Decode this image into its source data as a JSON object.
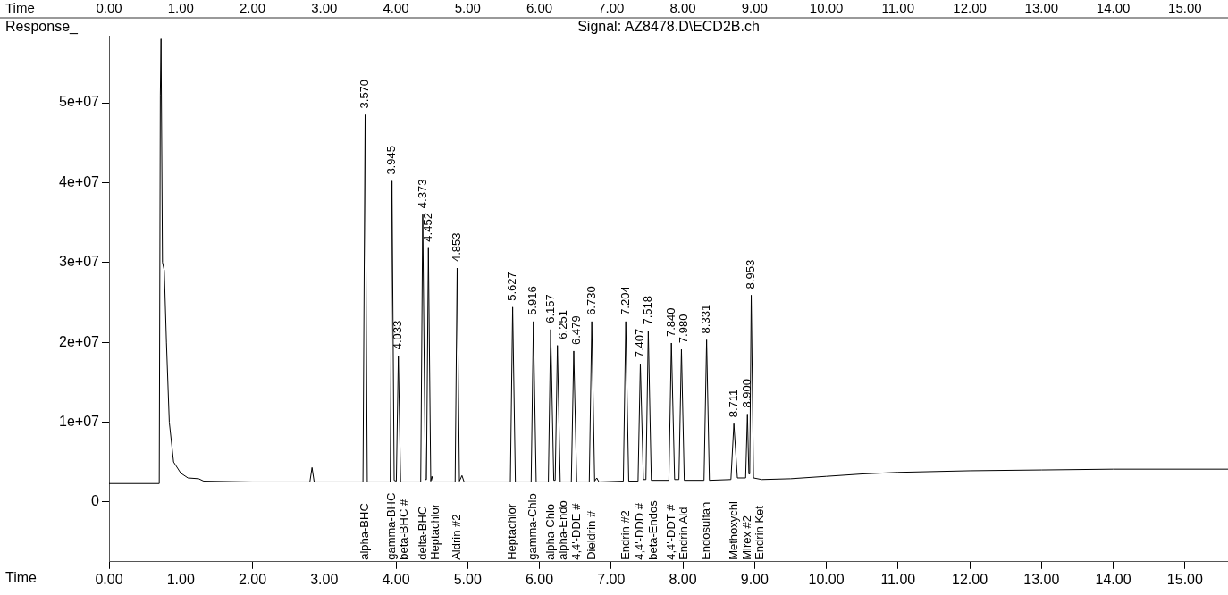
{
  "chart_data": {
    "type": "line",
    "title": "Signal: AZ8478.D\\ECD2B.ch",
    "xlabel": "Time",
    "ylabel": "Response_",
    "x2label": "Time",
    "x": [
      0,
      0.7,
      0.715,
      0.725,
      0.735,
      0.745,
      0.77,
      0.8,
      0.84,
      0.9,
      1.0,
      1.1,
      1.25,
      1.32,
      2.0,
      2.8,
      2.83,
      2.86,
      3.54,
      3.57,
      3.6,
      3.92,
      3.945,
      3.975,
      4.005,
      4.033,
      4.065,
      4.345,
      4.373,
      4.41,
      4.425,
      4.452,
      4.485,
      4.5,
      4.52,
      4.825,
      4.853,
      4.885,
      4.92,
      4.95,
      5.595,
      5.627,
      5.665,
      5.885,
      5.916,
      5.955,
      6.125,
      6.157,
      6.2,
      6.22,
      6.251,
      6.29,
      6.445,
      6.479,
      6.52,
      6.695,
      6.73,
      6.77,
      6.8,
      6.83,
      7.17,
      7.204,
      7.245,
      7.375,
      7.407,
      7.45,
      7.485,
      7.518,
      7.56,
      7.805,
      7.84,
      7.885,
      7.945,
      7.98,
      8.02,
      8.295,
      8.331,
      8.37,
      8.67,
      8.711,
      8.76,
      8.875,
      8.9,
      8.92,
      8.932,
      8.953,
      8.985,
      9.1,
      9.5,
      10.0,
      10.5,
      11.0,
      12.0,
      13.0,
      14.0,
      15.6
    ],
    "series": [
      {
        "color": "#000000",
        "values": [
          2300000,
          2300000,
          51000000,
          58000000,
          58000000,
          30000000,
          29000000,
          20000000,
          10000000,
          5000000,
          3600000,
          3000000,
          2900000,
          2600000,
          2500000,
          2500000,
          4300000,
          2500000,
          2500000,
          48500000,
          2500000,
          2500000,
          40200000,
          2700000,
          2600000,
          18300000,
          2500000,
          2500000,
          36000000,
          2800000,
          2800000,
          31800000,
          2600000,
          3200000,
          2500000,
          2500000,
          29300000,
          2600000,
          3300000,
          2500000,
          2500000,
          24400000,
          2500000,
          2500000,
          22600000,
          2500000,
          2500000,
          21600000,
          2700000,
          2700000,
          19600000,
          2500000,
          2500000,
          18900000,
          2500000,
          2500000,
          22600000,
          2600000,
          3000000,
          2500000,
          2600000,
          22600000,
          2600000,
          2600000,
          17300000,
          2800000,
          2800000,
          21400000,
          2700000,
          2700000,
          19900000,
          2800000,
          2800000,
          19100000,
          2700000,
          2700000,
          20300000,
          2700000,
          2800000,
          9800000,
          3000000,
          3000000,
          11000000,
          3500000,
          3500000,
          25900000,
          3000000,
          2800000,
          2900000,
          3200000,
          3500000,
          3700000,
          3900000,
          4000000,
          4100000,
          4100000
        ]
      }
    ],
    "xlim": [
      0,
      15.6
    ],
    "ylim": [
      -7500000,
      58400000
    ],
    "x2lim": [
      0,
      15.6
    ],
    "xticks": [
      {
        "value": 0,
        "label": "0.00"
      },
      {
        "value": 1,
        "label": "1.00"
      },
      {
        "value": 2,
        "label": "2.00"
      },
      {
        "value": 3,
        "label": "3.00"
      },
      {
        "value": 4,
        "label": "4.00"
      },
      {
        "value": 5,
        "label": "5.00"
      },
      {
        "value": 6,
        "label": "6.00"
      },
      {
        "value": 7,
        "label": "7.00"
      },
      {
        "value": 8,
        "label": "8.00"
      },
      {
        "value": 9,
        "label": "9.00"
      },
      {
        "value": 10,
        "label": "10.00"
      },
      {
        "value": 11,
        "label": "11.00"
      },
      {
        "value": 12,
        "label": "12.00"
      },
      {
        "value": 13,
        "label": "13.00"
      },
      {
        "value": 14,
        "label": "14.00"
      },
      {
        "value": 15,
        "label": "15.00"
      }
    ],
    "x2ticks": [
      {
        "value": 0,
        "label": "0.00"
      },
      {
        "value": 1,
        "label": "1.00"
      },
      {
        "value": 2,
        "label": "2.00"
      },
      {
        "value": 3,
        "label": "3.00"
      },
      {
        "value": 4,
        "label": "4.00"
      },
      {
        "value": 5,
        "label": "5.00"
      },
      {
        "value": 6,
        "label": "6.00"
      },
      {
        "value": 7,
        "label": "7.00"
      },
      {
        "value": 8,
        "label": "8.00"
      },
      {
        "value": 9,
        "label": "9.00"
      },
      {
        "value": 10,
        "label": "10.00"
      },
      {
        "value": 11,
        "label": "11.00"
      },
      {
        "value": 12,
        "label": "12.00"
      },
      {
        "value": 13,
        "label": "13.00"
      },
      {
        "value": 14,
        "label": "14.00"
      },
      {
        "value": 15,
        "label": "15.00"
      }
    ],
    "yticks": [
      0,
      {
        "value": 10000000,
        "label": "1e+07"
      },
      {
        "value": 20000000,
        "label": "2e+07"
      },
      {
        "value": 30000000,
        "label": "3e+07"
      },
      {
        "value": 40000000,
        "label": "4e+07"
      },
      {
        "value": 50000000,
        "label": "5e+07"
      }
    ],
    "grid": false,
    "legend": false,
    "marker": "none",
    "line_style": "solid",
    "annotations": [
      {
        "text": "3.570",
        "x": 3.57,
        "y": 48500000
      },
      {
        "text": "3.945",
        "x": 3.945,
        "y": 40200000
      },
      {
        "text": "4.033",
        "x": 4.033,
        "y": 18300000
      },
      {
        "text": "4.373",
        "x": 4.373,
        "y": 36000000
      },
      {
        "text": "4.452",
        "x": 4.452,
        "y": 31800000
      },
      {
        "text": "4.853",
        "x": 4.853,
        "y": 29300000
      },
      {
        "text": "5.627",
        "x": 5.627,
        "y": 24400000
      },
      {
        "text": "5.916",
        "x": 5.916,
        "y": 22600000
      },
      {
        "text": "6.157",
        "x": 6.157,
        "y": 21600000
      },
      {
        "text": "6.251",
        "x": 6.251,
        "y": 19600000
      },
      {
        "text": "6.479",
        "x": 6.479,
        "y": 18900000
      },
      {
        "text": "6.730",
        "x": 6.73,
        "y": 22600000
      },
      {
        "text": "7.204",
        "x": 7.204,
        "y": 22600000
      },
      {
        "text": "7.407",
        "x": 7.407,
        "y": 17300000
      },
      {
        "text": "7.518",
        "x": 7.518,
        "y": 21400000
      },
      {
        "text": "7.840",
        "x": 7.84,
        "y": 19900000
      },
      {
        "text": "7.980",
        "x": 7.98,
        "y": 19100000
      },
      {
        "text": "8.331",
        "x": 8.331,
        "y": 20300000
      },
      {
        "text": "8.711",
        "x": 8.711,
        "y": 9800000
      },
      {
        "text": "8.900",
        "x": 8.9,
        "y": 11000000
      },
      {
        "text": "8.953",
        "x": 8.953,
        "y": 25900000
      },
      "alpha-BHC",
      "gamma-BHC",
      "beta-BHC #",
      "delta-BHC",
      "Heptachlor",
      "Aldrin #2",
      "Heptachlor",
      "gamma-Chlo",
      "alpha-Chlo",
      "alpha-Endo",
      "4,4'-DDE #",
      "Dieldrin #",
      "Endrin #2",
      "4,4'-DDD #",
      "beta-Endos",
      "4,4'-DDT #",
      "Endrin Ald",
      "Endosulfan",
      "Methoxychl",
      "Mirex #2",
      "Endrin Ket"
    ]
  }
}
